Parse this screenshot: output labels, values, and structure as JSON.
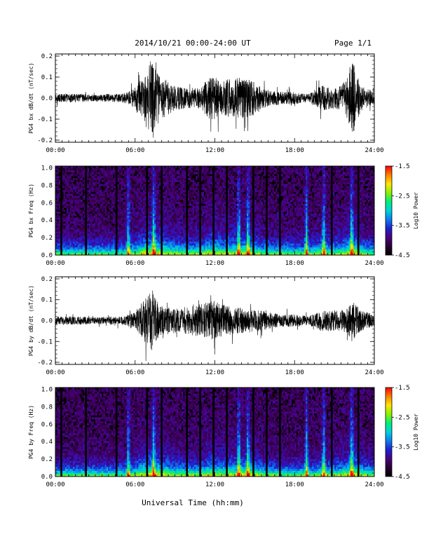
{
  "header": {
    "title": "2014/10/21   00:00-24:00 UT",
    "page": "Page 1/1"
  },
  "footer": {
    "xlabel": "Universal Time (hh:mm)"
  },
  "x_ticks": [
    "00:00",
    "06:00",
    "12:00",
    "18:00",
    "24:00"
  ],
  "colors": {
    "trace": "#000000",
    "colormap": [
      "#000000",
      "#2a0033",
      "#4b007f",
      "#1f1fd0",
      "#0b7cf0",
      "#00d2dc",
      "#00ee7a",
      "#8cf000",
      "#ffe600",
      "#ff8000",
      "#ff0000"
    ]
  },
  "chart_data": [
    {
      "type": "line",
      "ylabel": "PG4 bx dB/dt (nT/sec)",
      "xlim": [
        0,
        24
      ],
      "ylim": [
        -0.21,
        0.21
      ],
      "yticks": [
        "0.2",
        "0.1",
        "0.0",
        "-0.1",
        "-0.2"
      ],
      "ytick_values": [
        0.2,
        0.1,
        0.0,
        -0.1,
        -0.2
      ],
      "x_unit": "hours UT",
      "amplitude_envelope": {
        "x": [
          0,
          1,
          2,
          3,
          4,
          5,
          5.5,
          6,
          6.5,
          7,
          7.3,
          7.6,
          8,
          9,
          10,
          11,
          11.5,
          12,
          12.5,
          13,
          14,
          14.5,
          15,
          15.5,
          16,
          17,
          18,
          19,
          20,
          21,
          21.5,
          22,
          22.3,
          23,
          24
        ],
        "y": [
          0.02,
          0.02,
          0.02,
          0.015,
          0.02,
          0.02,
          0.03,
          0.05,
          0.1,
          0.16,
          0.2,
          0.14,
          0.1,
          0.06,
          0.05,
          0.05,
          0.1,
          0.1,
          0.08,
          0.09,
          0.1,
          0.09,
          0.08,
          0.05,
          0.04,
          0.03,
          0.03,
          0.02,
          0.06,
          0.05,
          0.06,
          0.1,
          0.19,
          0.06,
          0.03
        ]
      }
    },
    {
      "type": "heatmap",
      "ylabel": "PG4 bx Freq (Hz)",
      "xlim": [
        0,
        24
      ],
      "ylim": [
        0,
        1.02
      ],
      "yticks": [
        "1.0",
        "0.8",
        "0.6",
        "0.4",
        "0.2",
        "0.0"
      ],
      "ytick_values": [
        1.0,
        0.8,
        0.6,
        0.4,
        0.2,
        0.0
      ],
      "colorbar": {
        "label": "Log10 Power",
        "ticks": [
          "-1.5",
          "-2.5",
          "-3.5",
          "-4.5"
        ],
        "tick_values": [
          -1.5,
          -2.5,
          -3.5,
          -4.5
        ],
        "range": [
          -4.5,
          -1.5
        ]
      },
      "gaps_hours": [
        0.45,
        2.3,
        4.6,
        6.9,
        8.0,
        9.9,
        10.9,
        11.9,
        12.9,
        14.9,
        15.9,
        16.9,
        20.8,
        22.8
      ],
      "bright_bands_hours": [
        5.5,
        7.4,
        13.8,
        14.5,
        18.9,
        20.2,
        22.3
      ]
    },
    {
      "type": "line",
      "ylabel": "PG4 by dB/dt (nT/sec)",
      "xlim": [
        0,
        24
      ],
      "ylim": [
        -0.21,
        0.21
      ],
      "yticks": [
        "0.2",
        "0.1",
        "0.0",
        "-0.1",
        "-0.2"
      ],
      "ytick_values": [
        0.2,
        0.1,
        0.0,
        -0.1,
        -0.2
      ],
      "x_unit": "hours UT",
      "amplitude_envelope": {
        "x": [
          0,
          1,
          2,
          3,
          4,
          5,
          5.5,
          6,
          6.5,
          7,
          7.3,
          7.6,
          8,
          9,
          10,
          11,
          11.5,
          12,
          12.5,
          13,
          14,
          14.5,
          15,
          15.5,
          16,
          17,
          18,
          19,
          20,
          21,
          21.5,
          22,
          22.3,
          23,
          24
        ],
        "y": [
          0.02,
          0.02,
          0.02,
          0.015,
          0.02,
          0.02,
          0.03,
          0.04,
          0.09,
          0.12,
          0.15,
          0.1,
          0.07,
          0.06,
          0.07,
          0.08,
          0.09,
          0.1,
          0.08,
          0.07,
          0.06,
          0.06,
          0.05,
          0.05,
          0.04,
          0.03,
          0.03,
          0.02,
          0.05,
          0.05,
          0.05,
          0.06,
          0.1,
          0.05,
          0.03
        ]
      }
    },
    {
      "type": "heatmap",
      "ylabel": "PG4 by Freq (Hz)",
      "xlim": [
        0,
        24
      ],
      "ylim": [
        0,
        1.02
      ],
      "yticks": [
        "1.0",
        "0.8",
        "0.6",
        "0.4",
        "0.2",
        "0.0"
      ],
      "ytick_values": [
        1.0,
        0.8,
        0.6,
        0.4,
        0.2,
        0.0
      ],
      "colorbar": {
        "label": "Log10 Power",
        "ticks": [
          "-1.5",
          "-2.5",
          "-3.5",
          "-4.5"
        ],
        "tick_values": [
          -1.5,
          -2.5,
          -3.5,
          -4.5
        ],
        "range": [
          -4.5,
          -1.5
        ]
      },
      "gaps_hours": [
        0.45,
        2.3,
        4.6,
        6.9,
        8.0,
        9.9,
        10.9,
        11.9,
        12.9,
        14.9,
        15.9,
        16.9,
        20.8,
        22.8
      ],
      "bright_bands_hours": [
        5.5,
        7.4,
        13.8,
        14.5,
        18.9,
        20.2,
        22.3
      ]
    }
  ]
}
